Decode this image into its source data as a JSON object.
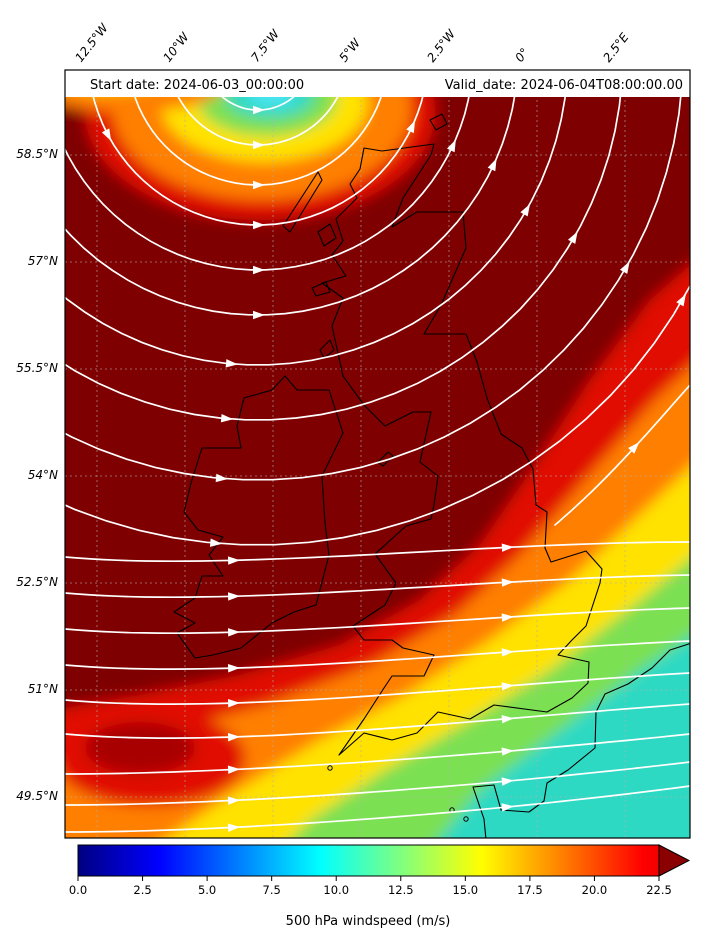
{
  "figure": {
    "start_date": "Start date: 2024-06-03_00:00:00",
    "valid_date": "Valid_date: 2024-06-04T08:00:00.00",
    "colorbar_label": "500 hPa windspeed (m/s)"
  },
  "chart_data": {
    "type": "heatmap",
    "field": "500 hPa windspeed",
    "units": "m/s",
    "region": "British Isles, Ireland and adjacent seas / NW France",
    "overlay": "white wind-direction streamlines with arrowheads, black coastlines, dashed gray graticule, white annotation bar with start/valid dates",
    "x_tick_labels": [
      "12.5°W",
      "10°W",
      "7.5°W",
      "5°W",
      "2.5°W",
      "0°",
      "2.5°E"
    ],
    "y_tick_labels": [
      "58.5°N",
      "57°N",
      "55.5°N",
      "54°N",
      "52.5°N",
      "51°N",
      "49.5°N"
    ],
    "colorbar": {
      "ticks": [
        "0.0",
        "2.5",
        "5.0",
        "7.5",
        "10.0",
        "12.5",
        "15.0",
        "17.5",
        "20.0",
        "22.5"
      ],
      "min": 0.0,
      "max_shown": 22.5,
      "extend": "max",
      "colormap": "jet",
      "stops": [
        {
          "pos": 0.0,
          "color": "#000080"
        },
        {
          "pos": 0.139,
          "color": "#0000ff"
        },
        {
          "pos": 0.417,
          "color": "#00ffff"
        },
        {
          "pos": 0.694,
          "color": "#ffff00"
        },
        {
          "pos": 0.972,
          "color": "#ff0000"
        },
        {
          "pos": 1.0,
          "color": "#f20000"
        }
      ],
      "arrow_color": "#8b0000"
    },
    "palette": {
      "darkred": "#7f0000",
      "red": "#e01000",
      "orange": "#ff7f00",
      "yellow": "#ffe200",
      "green": "#7be052",
      "cyan": "#2ed9c3",
      "core": "#4ae4f2"
    },
    "features": [
      "broad area above 22.5 m/s (dark red) covering Ireland, Scotland and the NE Atlantic",
      "calm low-windspeed core (about 10 m/s, cyan) near 7.5°W north of Scotland with cyclonic (counterclockwise) streamline curvature",
      "windspeed decreasing southeastward to about 10-13 m/s (green/cyan) over the English Channel, SE England and NW France",
      "local red maximum (about 20 m/s) in the Celtic Sea southwest of Ireland",
      "streamlines generally west-to-east in the south, turning northeastward near the right edge"
    ]
  }
}
